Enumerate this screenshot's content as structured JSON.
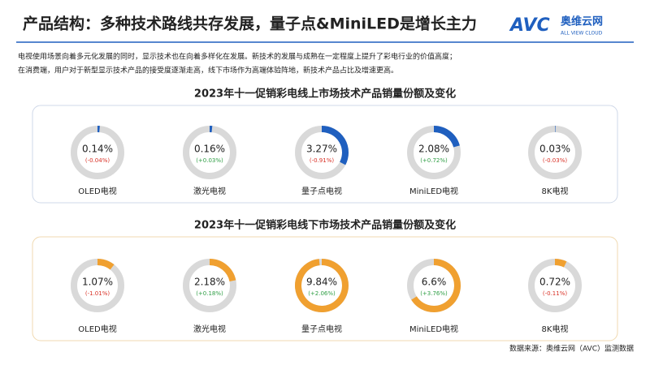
{
  "header": {
    "title": "产品结构：多种技术路线共存发展，量子点&MiniLED是增长主力",
    "logo": "AVC",
    "logo_name": "奥维云网",
    "logo_sub": "ALL VIEW CLOUD"
  },
  "intro": [
    "电视使用场景向着多元化发展的同时，显示技术也在向着多样化在发展。新技术的发展与成熟在一定程度上提升了彩电行业的价值高度；",
    "在消费端，用户对于新型显示技术产品的接受度逐渐走高，线下市场作为高端体验阵地，新技术产品占比及增速更高。"
  ],
  "chart_data": [
    {
      "type": "donut",
      "title": "2023年十一促销彩电线上市场技术产品销量份额及变化",
      "color": "#1f5fbf",
      "ylim": [
        0,
        10
      ],
      "categories": [
        "OLED电视",
        "激光电视",
        "量子点电视",
        "MiniLED电视",
        "8K电视"
      ],
      "values": [
        0.14,
        0.16,
        3.27,
        2.08,
        0.03
      ],
      "value_labels": [
        "0.14%",
        "0.16%",
        "3.27%",
        "2.08%",
        "0.03%"
      ],
      "changes": [
        -0.04,
        0.03,
        -0.91,
        0.72,
        -0.03
      ],
      "change_labels": [
        "(-0.04%)",
        "(+0.03%)",
        "(-0.91%)",
        "(+0.72%)",
        "(-0.03%)"
      ]
    },
    {
      "type": "donut",
      "title": "2023年十一促销彩电线下市场技术产品销量份额及变化",
      "color": "#f0a030",
      "ylim": [
        0,
        10
      ],
      "categories": [
        "OLED电视",
        "激光电视",
        "量子点电视",
        "MiniLED电视",
        "8K电视"
      ],
      "values": [
        1.07,
        2.18,
        9.84,
        6.6,
        0.72
      ],
      "value_labels": [
        "1.07%",
        "2.18%",
        "9.84%",
        "6.6%",
        "0.72%"
      ],
      "changes": [
        -1.01,
        0.18,
        2.06,
        3.76,
        -0.11
      ],
      "change_labels": [
        "(-1.01%)",
        "(+0.18%)",
        "(+2.06%)",
        "(+3.76%)",
        "(-0.11%)"
      ]
    }
  ],
  "source": "数据来源：奥维云网（AVC）监测数据"
}
